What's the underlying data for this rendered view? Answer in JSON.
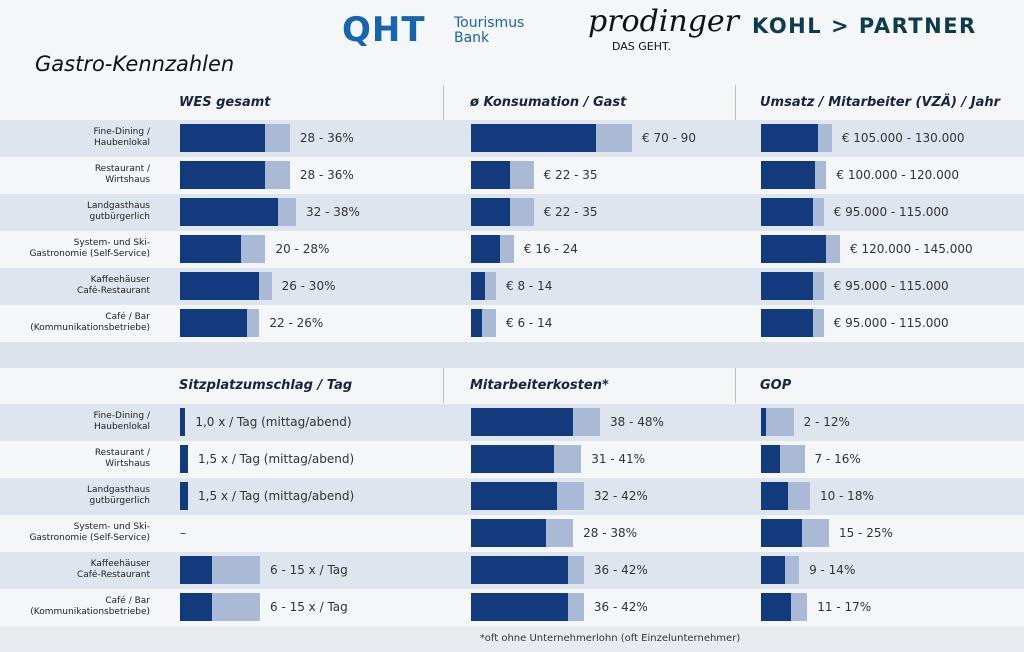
{
  "header": {
    "title": "Gastro-Kennzahlen",
    "logo1": "QHT",
    "logo1_text": "Tourismus\nBank",
    "logo2": "prodinger",
    "logo2_text": "DAS GEHT.",
    "logo3": "KOHL > PARTNER"
  },
  "footnote": "*oft ohne Unternehmerlohn (oft Einzelunternehmer)",
  "chart_data": [
    {
      "type": "range-bar",
      "title": "WES gesamt",
      "categories": [
        "Fine-Dining /\nHaubenlokal",
        "Restaurant /\nWirtshaus",
        "Landgasthaus\ngutbürgerlich",
        "System- und Ski-\nGastronomie (Self-Service)",
        "Kaffeehäuser\nCafé-Restaurant",
        "Café / Bar\n(Kommunikationsbetriebe)"
      ],
      "series": [
        {
          "color": "#123a7c",
          "values": [
            28,
            28,
            32,
            20,
            26,
            22
          ]
        },
        {
          "color": "#a9b9d6",
          "values": [
            36,
            36,
            38,
            28,
            30,
            26
          ]
        }
      ],
      "value_labels": [
        "28 - 36%",
        "28 - 36%",
        "32 - 38%",
        "20 - 28%",
        "26 - 30%",
        "22 - 26%"
      ]
    },
    {
      "type": "range-bar",
      "title": "ø Konsumation / Gast",
      "series": [
        {
          "color": "#123a7c",
          "values": [
            70,
            22,
            22,
            16,
            8,
            6
          ]
        },
        {
          "color": "#a9b9d6",
          "values": [
            90,
            35,
            35,
            24,
            14,
            14
          ]
        }
      ],
      "value_labels": [
        "€ 70 - 90",
        "€ 22 - 35",
        "€ 22 - 35",
        "€ 16 - 24",
        "€ 8 - 14",
        "€ 6 - 14"
      ]
    },
    {
      "type": "range-bar",
      "title": "Umsatz / Mitarbeiter (VZÄ) / Jahr",
      "series": [
        {
          "color": "#123a7c",
          "values": [
            105000,
            100000,
            95000,
            120000,
            95000,
            95000
          ]
        },
        {
          "color": "#a9b9d6",
          "values": [
            130000,
            120000,
            115000,
            145000,
            115000,
            115000
          ]
        }
      ],
      "value_labels": [
        "€ 105.000 - 130.000",
        "€ 100.000 - 120.000",
        "€ 95.000 - 115.000",
        "€ 120.000 - 145.000",
        "€ 95.000 - 115.000",
        "€ 95.000 - 115.000"
      ]
    },
    {
      "type": "range-bar",
      "title": "Sitzplatzumschlag / Tag",
      "categories": [
        "Fine-Dining /\nHaubenlokal",
        "Restaurant /\nWirtshaus",
        "Landgasthaus\ngutbürgerlich",
        "System- und Ski-\nGastronomie (Self-Service)",
        "Kaffeehäuser\nCafé-Restaurant",
        "Café / Bar\n(Kommunikationsbetriebe)"
      ],
      "series": [
        {
          "color": "#123a7c",
          "values": [
            1,
            1.5,
            1.5,
            null,
            6,
            6
          ]
        },
        {
          "color": "#a9b9d6",
          "values": [
            null,
            null,
            null,
            null,
            15,
            15
          ]
        }
      ],
      "value_labels": [
        "1,0 x / Tag (mittag/abend)",
        "1,5 x / Tag (mittag/abend)",
        "1,5 x / Tag (mittag/abend)",
        "–",
        "6 - 15 x / Tag",
        "6 - 15 x / Tag"
      ]
    },
    {
      "type": "range-bar",
      "title": "Mitarbeiterkosten*",
      "series": [
        {
          "color": "#123a7c",
          "values": [
            38,
            31,
            32,
            28,
            36,
            36
          ]
        },
        {
          "color": "#a9b9d6",
          "values": [
            48,
            41,
            42,
            38,
            42,
            42
          ]
        }
      ],
      "value_labels": [
        "38 - 48%",
        "31 - 41%",
        "32 - 42%",
        "28 - 38%",
        "36 - 42%",
        "36 - 42%"
      ]
    },
    {
      "type": "range-bar",
      "title": "GOP",
      "series": [
        {
          "color": "#123a7c",
          "values": [
            2,
            7,
            10,
            15,
            9,
            11
          ]
        },
        {
          "color": "#a9b9d6",
          "values": [
            12,
            16,
            18,
            25,
            14,
            17
          ]
        }
      ],
      "value_labels": [
        "2 - 12%",
        "7 - 16%",
        "10 - 18%",
        "15 - 25%",
        "9 - 14%",
        "11 - 17%"
      ]
    }
  ]
}
